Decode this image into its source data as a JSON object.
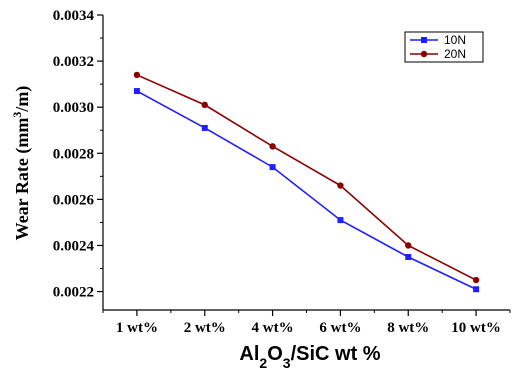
{
  "chart_data": {
    "type": "line",
    "categories": [
      "1 wt%",
      "2 wt%",
      "4 wt%",
      "6 wt%",
      "8 wt%",
      "10 wt%"
    ],
    "series": [
      {
        "name": "10N",
        "values": [
          0.00307,
          0.00291,
          0.00274,
          0.00251,
          0.00235,
          0.00221
        ],
        "color": "#1f1fff",
        "marker": "square"
      },
      {
        "name": "20N",
        "values": [
          0.00314,
          0.00301,
          0.00283,
          0.00266,
          0.0024,
          0.00225
        ],
        "color": "#8b0000",
        "marker": "circle"
      }
    ],
    "y_ticks": [
      "0.0022",
      "0.0024",
      "0.0026",
      "0.0028",
      "0.0030",
      "0.0032",
      "0.0034"
    ],
    "ylim": [
      0.00212,
      0.0034
    ],
    "ylabel": {
      "main": "Wear Rate (mm",
      "sup": "3",
      "tail": "/m)"
    },
    "xlabel": {
      "a": "Al",
      "s1": "2",
      "b": "O",
      "s2": "3",
      "c": "/SiC wt %"
    },
    "legend_position": "top-right",
    "grid": false
  }
}
